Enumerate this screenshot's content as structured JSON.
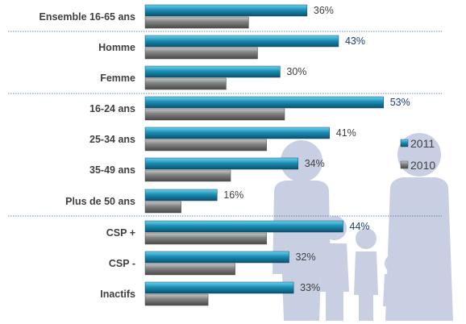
{
  "chart_data": {
    "type": "bar",
    "orientation": "horizontal",
    "categories": [
      "Ensemble 16-65 ans",
      "Homme",
      "Femme",
      "16-24 ans",
      "25-34 ans",
      "35-49 ans",
      "Plus de 50 ans",
      "CSP +",
      "CSP -",
      "Inactifs"
    ],
    "series": [
      {
        "name": "2011",
        "values": [
          36,
          43,
          30,
          53,
          41,
          34,
          16,
          44,
          32,
          33
        ],
        "color": "#1b8fb4"
      },
      {
        "name": "2010",
        "values": [
          23,
          25,
          18,
          31,
          27,
          19,
          8,
          27,
          20,
          14
        ],
        "color": "#7f7f7f"
      }
    ],
    "data_labels": [
      "36%",
      "43%",
      "30%",
      "53%",
      "41%",
      "34%",
      "16%",
      "44%",
      "32%",
      "33%"
    ],
    "data_label_colors": [
      "#404040",
      "#1f3c78",
      "#404040",
      "#1f3c78",
      "#404040",
      "#404040",
      "#404040",
      "#1f3c78",
      "#404040",
      "#404040"
    ],
    "groups": [
      [
        0
      ],
      [
        1,
        2
      ],
      [
        3,
        4,
        5,
        6
      ],
      [
        7,
        8,
        9
      ]
    ],
    "unit": "%",
    "xlim": [
      0,
      55
    ],
    "legend_position": "right",
    "grid": false,
    "background_image": "family-silhouette"
  }
}
